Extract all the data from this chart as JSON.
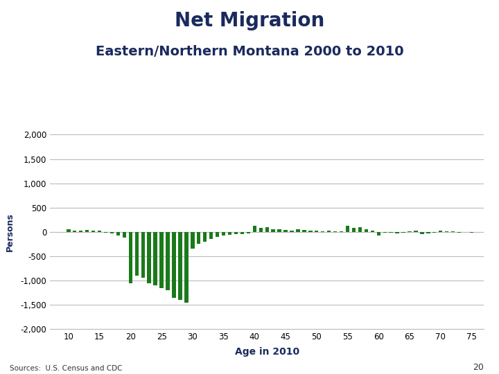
{
  "title": "Net Migration",
  "subtitle": "Eastern/Northern Montana 2000 to 2010",
  "xlabel": "Age in 2010",
  "ylabel": "Persons",
  "source": "Sources:  U.S. Census and CDC",
  "page_num": "20",
  "title_color": "#1a2a5e",
  "subtitle_color": "#1a2a5e",
  "bar_color": "#1a7a1a",
  "background_color": "#ffffff",
  "ylim": [
    -2000,
    2000
  ],
  "yticks": [
    -2000,
    -1500,
    -1000,
    -500,
    0,
    500,
    1000,
    1500,
    2000
  ],
  "xticks": [
    10,
    15,
    20,
    25,
    30,
    35,
    40,
    45,
    50,
    55,
    60,
    65,
    70,
    75
  ],
  "ages": [
    10,
    11,
    12,
    13,
    14,
    15,
    16,
    17,
    18,
    19,
    20,
    21,
    22,
    23,
    24,
    25,
    26,
    27,
    28,
    29,
    30,
    31,
    32,
    33,
    34,
    35,
    36,
    37,
    38,
    39,
    40,
    41,
    42,
    43,
    44,
    45,
    46,
    47,
    48,
    49,
    50,
    51,
    52,
    53,
    54,
    55,
    56,
    57,
    58,
    59,
    60,
    61,
    62,
    63,
    64,
    65,
    66,
    67,
    68,
    69,
    70,
    71,
    72,
    73,
    74,
    75
  ],
  "values": [
    50,
    30,
    20,
    40,
    30,
    20,
    -20,
    -30,
    -80,
    -120,
    -1050,
    -900,
    -950,
    -1050,
    -1100,
    -1150,
    -1200,
    -1350,
    -1400,
    -1450,
    -350,
    -250,
    -200,
    -150,
    -100,
    -80,
    -60,
    -50,
    -40,
    -30,
    120,
    80,
    100,
    60,
    50,
    40,
    30,
    60,
    40,
    30,
    20,
    10,
    20,
    15,
    10,
    130,
    80,
    100,
    50,
    30,
    -70,
    -20,
    -10,
    -30,
    -20,
    10,
    30,
    -40,
    -30,
    -20,
    20,
    10,
    5,
    -10,
    -5,
    -10
  ]
}
